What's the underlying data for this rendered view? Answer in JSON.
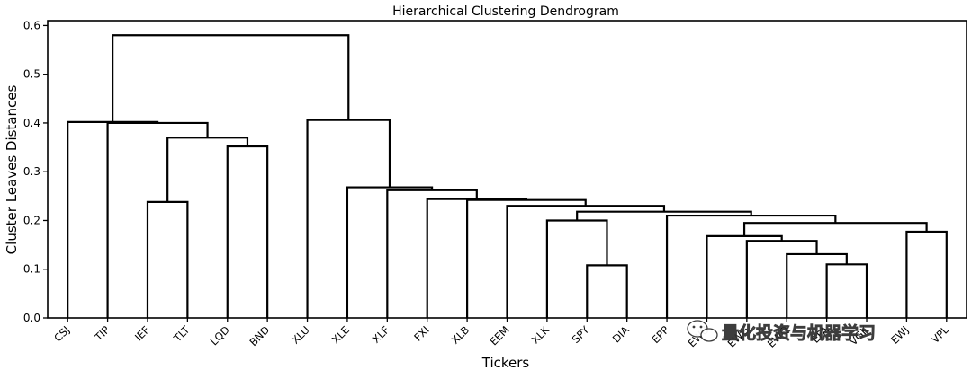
{
  "chart_data": {
    "type": "dendrogram",
    "title": "Hierarchical Clustering Dendrogram",
    "xlabel": "Tickers",
    "ylabel": "Cluster Leaves Distances",
    "ylim": [
      0,
      0.61
    ],
    "yticks": [
      "0.0",
      "0.1",
      "0.2",
      "0.3",
      "0.4",
      "0.5",
      "0.6"
    ],
    "grid": false,
    "leaves": [
      "CSJ",
      "TIP",
      "IEF",
      "TLT",
      "LQD",
      "BND",
      "XLU",
      "XLE",
      "XLF",
      "FXI",
      "XLB",
      "EEM",
      "XLK",
      "SPY",
      "DIA",
      "EPP",
      "EWU",
      "EWG",
      "EWQ",
      "EFA",
      "VGK",
      "EWJ",
      "VPL"
    ],
    "merges": [
      {
        "a": "L13",
        "b": "L14",
        "height": 0.108
      },
      {
        "a": "L19",
        "b": "L20",
        "height": 0.11
      },
      {
        "a": "L18",
        "b": "N1",
        "height": 0.131
      },
      {
        "a": "L17",
        "b": "N2",
        "height": 0.158
      },
      {
        "a": "L16",
        "b": "N3",
        "height": 0.168
      },
      {
        "a": "L21",
        "b": "L22",
        "height": 0.177
      },
      {
        "a": "N4",
        "b": "N5",
        "height": 0.195
      },
      {
        "a": "L12",
        "b": "N0",
        "height": 0.2
      },
      {
        "a": "L15",
        "b": "N6",
        "height": 0.21
      },
      {
        "a": "N7",
        "b": "N8",
        "height": 0.218
      },
      {
        "a": "L11",
        "b": "N9",
        "height": 0.23
      },
      {
        "a": "L2",
        "b": "L3",
        "height": 0.238
      },
      {
        "a": "L10",
        "b": "N10",
        "height": 0.242
      },
      {
        "a": "L9",
        "b": "N12",
        "height": 0.244
      },
      {
        "a": "L8",
        "b": "N13",
        "height": 0.262
      },
      {
        "a": "L7",
        "b": "N14",
        "height": 0.268
      },
      {
        "a": "L4",
        "b": "L5",
        "height": 0.352
      },
      {
        "a": "N11",
        "b": "N16",
        "height": 0.37
      },
      {
        "a": "L1",
        "b": "N17",
        "height": 0.4
      },
      {
        "a": "L0",
        "b": "N18",
        "height": 0.402
      },
      {
        "a": "L6",
        "b": "N15",
        "height": 0.406
      },
      {
        "a": "N19",
        "b": "N20",
        "height": 0.58
      }
    ]
  },
  "watermark": {
    "text": "量化投资与机器学习",
    "icon": "wechat-icon"
  }
}
